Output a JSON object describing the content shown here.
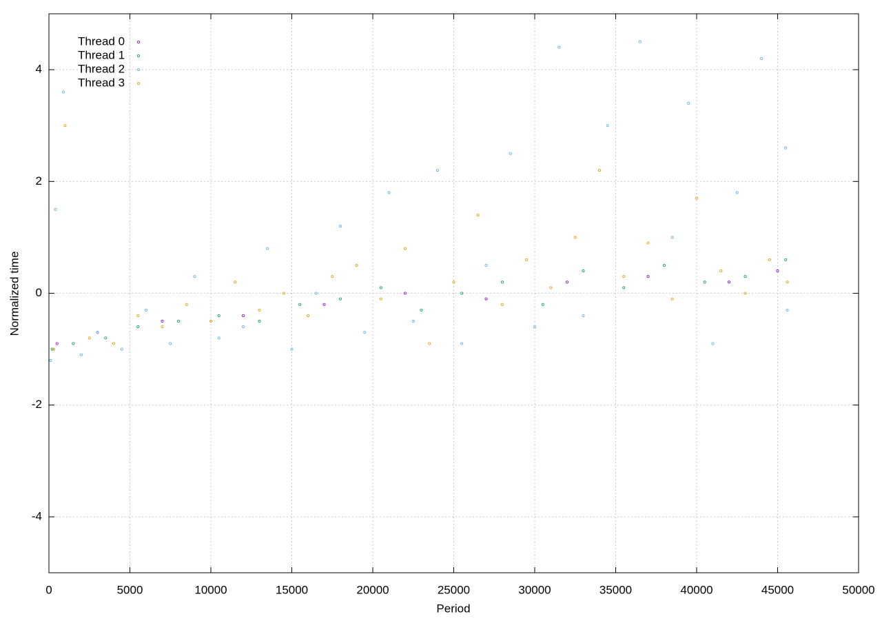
{
  "chart_data": {
    "type": "scatter",
    "x_label": "Period",
    "y_label": "Normalized time",
    "xlim": [
      0,
      50000
    ],
    "ylim": [
      -5,
      5
    ],
    "xticks": [
      0,
      5000,
      10000,
      15000,
      20000,
      25000,
      30000,
      35000,
      40000,
      45000,
      50000
    ],
    "yticks": [
      -4,
      -2,
      0,
      2,
      4
    ],
    "grid": true,
    "legend": "top-left",
    "series": [
      {
        "name": "Thread 0",
        "color": "#9400d3",
        "x": [
          500,
          3000,
          7000,
          12000,
          17000,
          22000,
          27000,
          32000,
          37000,
          42000,
          45000
        ],
        "values": [
          -0.9,
          -0.7,
          -0.5,
          -0.4,
          -0.2,
          0.0,
          -0.1,
          0.2,
          0.3,
          0.2,
          0.4
        ]
      },
      {
        "name": "Thread 1",
        "color": "#009e73",
        "x": [
          200,
          1500,
          3500,
          5500,
          8000,
          10500,
          13000,
          15500,
          18000,
          20500,
          23000,
          25500,
          28000,
          30500,
          33000,
          35500,
          38000,
          40500,
          43000,
          45500
        ],
        "values": [
          -1.0,
          -0.9,
          -0.8,
          -0.6,
          -0.5,
          -0.4,
          -0.5,
          -0.2,
          -0.1,
          0.1,
          -0.3,
          0.0,
          0.2,
          -0.2,
          0.4,
          0.1,
          0.5,
          0.2,
          0.3,
          0.6
        ]
      },
      {
        "name": "Thread 2",
        "color": "#56b4e9",
        "x": [
          100,
          400,
          900,
          2000,
          3000,
          4500,
          6000,
          7500,
          9000,
          10500,
          12000,
          13500,
          15000,
          16500,
          18000,
          19500,
          21000,
          22500,
          24000,
          25500,
          27000,
          28500,
          30000,
          31500,
          33000,
          34500,
          36500,
          38500,
          39500,
          41000,
          42500,
          44000,
          45500,
          45600
        ],
        "values": [
          -1.2,
          1.5,
          3.6,
          -1.1,
          -0.7,
          -1.0,
          -0.3,
          -0.9,
          0.3,
          -0.8,
          -0.6,
          0.8,
          -1.0,
          0.0,
          1.2,
          -0.7,
          1.8,
          -0.5,
          2.2,
          -0.9,
          0.5,
          2.5,
          -0.6,
          4.4,
          -0.4,
          3.0,
          4.5,
          1.0,
          3.4,
          -0.9,
          1.8,
          4.2,
          2.6,
          -0.3
        ]
      },
      {
        "name": "Thread 3",
        "color": "#e69f00",
        "x": [
          300,
          1000,
          2500,
          4000,
          5500,
          7000,
          8500,
          10000,
          11500,
          13000,
          14500,
          16000,
          17500,
          19000,
          20500,
          22000,
          23500,
          25000,
          26500,
          28000,
          29500,
          31000,
          32500,
          34000,
          35500,
          37000,
          38500,
          40000,
          41500,
          43000,
          44500,
          45600
        ],
        "values": [
          -1.0,
          3.0,
          -0.8,
          -0.9,
          -0.4,
          -0.6,
          -0.2,
          -0.5,
          0.2,
          -0.3,
          0.0,
          -0.4,
          0.3,
          0.5,
          -0.1,
          0.8,
          -0.9,
          0.2,
          1.4,
          -0.2,
          0.6,
          0.1,
          1.0,
          2.2,
          0.3,
          0.9,
          -0.1,
          1.7,
          0.4,
          0.0,
          0.6,
          0.2
        ]
      }
    ]
  }
}
